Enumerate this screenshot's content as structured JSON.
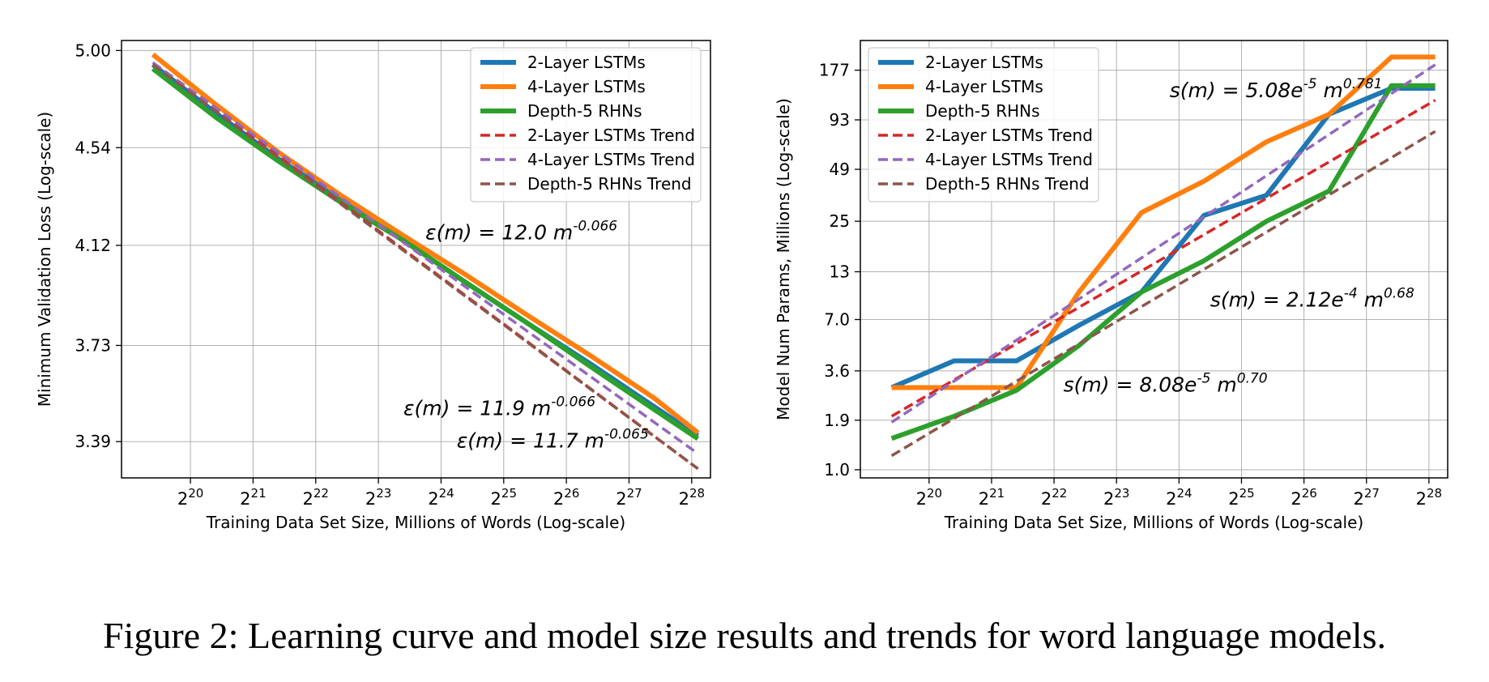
{
  "figure": {
    "caption": "Figure 2: Learning curve and model size results and trends for word language models."
  },
  "colors": {
    "2-Layer LSTMs": "#1f77b4",
    "4-Layer LSTMs": "#ff7f0e",
    "Depth-5 RHNs": "#2ca02c",
    "2-Layer LSTMs Trend": "#d62728",
    "4-Layer LSTMs Trend": "#9467bd",
    "Depth-5 RHNs Trend": "#8c564b"
  },
  "chart_data": [
    {
      "type": "line",
      "title": "",
      "xlabel": "Training Data Set Size, Millions of Words (Log-scale)",
      "ylabel": "Minimum Validation Loss (Log-scale)",
      "xscale": "log2",
      "yscale": "log",
      "grid": true,
      "legend": "top-right",
      "xlim_exp": [
        18.9,
        28.3
      ],
      "ylim": [
        3.27,
        5.05
      ],
      "xticks": [
        {
          "exp": 20,
          "base": "2",
          "sup": "20"
        },
        {
          "exp": 21,
          "base": "2",
          "sup": "21"
        },
        {
          "exp": 22,
          "base": "2",
          "sup": "22"
        },
        {
          "exp": 23,
          "base": "2",
          "sup": "23"
        },
        {
          "exp": 24,
          "base": "2",
          "sup": "24"
        },
        {
          "exp": 25,
          "base": "2",
          "sup": "25"
        },
        {
          "exp": 26,
          "base": "2",
          "sup": "26"
        },
        {
          "exp": 27,
          "base": "2",
          "sup": "27"
        },
        {
          "exp": 28,
          "base": "2",
          "sup": "28"
        }
      ],
      "yticks": [
        {
          "value": 3.39,
          "label": "3.39"
        },
        {
          "value": 3.73,
          "label": "3.73"
        },
        {
          "value": 4.12,
          "label": "4.12"
        },
        {
          "value": 4.54,
          "label": "4.54"
        },
        {
          "value": 5.0,
          "label": "5.00"
        }
      ],
      "series": [
        {
          "name": "2-Layer LSTMs",
          "style": "solid",
          "x_exp": [
            19.4,
            20.4,
            21.4,
            22.4,
            23.4,
            24.4,
            25.4,
            26.4,
            27.4,
            28.1
          ],
          "values": [
            4.93,
            4.7,
            4.49,
            4.31,
            4.14,
            3.97,
            3.81,
            3.66,
            3.51,
            3.41
          ]
        },
        {
          "name": "4-Layer LSTMs",
          "style": "solid",
          "x_exp": [
            19.4,
            20.4,
            21.4,
            22.4,
            23.4,
            24.4,
            25.4,
            26.4,
            27.4,
            28.1
          ],
          "values": [
            4.98,
            4.74,
            4.52,
            4.33,
            4.16,
            4.0,
            3.84,
            3.69,
            3.54,
            3.42
          ]
        },
        {
          "name": "Depth-5 RHNs",
          "style": "solid",
          "x_exp": [
            19.4,
            20.4,
            21.4,
            22.4,
            23.4,
            24.4,
            25.4,
            26.4,
            27.4,
            28.1
          ],
          "values": [
            4.91,
            4.68,
            4.48,
            4.3,
            4.14,
            3.97,
            3.81,
            3.65,
            3.5,
            3.4
          ]
        },
        {
          "name": "2-Layer LSTMs Trend",
          "style": "dashed",
          "x_exp": [
            19.4,
            28.1
          ],
          "values": [
            4.94,
            3.3
          ]
        },
        {
          "name": "4-Layer LSTMs Trend",
          "style": "dashed",
          "x_exp": [
            19.4,
            28.1
          ],
          "values": [
            4.94,
            3.35
          ]
        },
        {
          "name": "Depth-5 RHNs Trend",
          "style": "dashed",
          "x_exp": [
            19.4,
            28.1
          ],
          "values": [
            4.93,
            3.3
          ]
        }
      ],
      "annotations": [
        {
          "prefix": "ε(m) = 12.0 m",
          "sup": "-0.066",
          "x_exp": 23.75,
          "y": 4.145
        },
        {
          "prefix": "ε(m) = 11.9 m",
          "sup": "-0.066",
          "x_exp": 23.4,
          "y": 3.48
        },
        {
          "prefix": "ε(m) = 11.7 m",
          "sup": "-0.065",
          "x_exp": 24.25,
          "y": 3.37
        }
      ]
    },
    {
      "type": "line",
      "title": "",
      "xlabel": "Training Data Set Size, Millions of Words (Log-scale)",
      "ylabel": "Model Num Params, Millions (Log-scale)",
      "xscale": "log2",
      "yscale": "log",
      "grid": true,
      "legend": "top-left",
      "xlim_exp": [
        18.9,
        28.3
      ],
      "ylim": [
        0.9,
        260
      ],
      "xticks": [
        {
          "exp": 20,
          "base": "2",
          "sup": "20"
        },
        {
          "exp": 21,
          "base": "2",
          "sup": "21"
        },
        {
          "exp": 22,
          "base": "2",
          "sup": "22"
        },
        {
          "exp": 23,
          "base": "2",
          "sup": "23"
        },
        {
          "exp": 24,
          "base": "2",
          "sup": "24"
        },
        {
          "exp": 25,
          "base": "2",
          "sup": "25"
        },
        {
          "exp": 26,
          "base": "2",
          "sup": "26"
        },
        {
          "exp": 27,
          "base": "2",
          "sup": "27"
        },
        {
          "exp": 28,
          "base": "2",
          "sup": "28"
        }
      ],
      "yticks": [
        {
          "value": 1.0,
          "label": "1.0"
        },
        {
          "value": 1.9,
          "label": "1.9"
        },
        {
          "value": 3.6,
          "label": "3.6"
        },
        {
          "value": 7.0,
          "label": "7.0"
        },
        {
          "value": 13,
          "label": "13"
        },
        {
          "value": 25,
          "label": "25"
        },
        {
          "value": 49,
          "label": "49"
        },
        {
          "value": 93,
          "label": "93"
        },
        {
          "value": 177,
          "label": "177"
        }
      ],
      "series": [
        {
          "name": "2-Layer LSTMs",
          "style": "solid",
          "x_exp": [
            19.4,
            20.4,
            21.4,
            22.4,
            23.4,
            24.4,
            25.4,
            26.4,
            27.4,
            28.1
          ],
          "values": [
            2.9,
            4.1,
            4.1,
            6.5,
            10.0,
            27.0,
            35.0,
            100.0,
            140.0,
            140.0
          ]
        },
        {
          "name": "4-Layer LSTMs",
          "style": "solid",
          "x_exp": [
            19.4,
            20.4,
            21.4,
            22.4,
            23.4,
            24.4,
            25.4,
            26.4,
            27.4,
            28.1
          ],
          "values": [
            2.9,
            2.9,
            2.9,
            10.0,
            28.0,
            42.0,
            70.0,
            100.0,
            210.0,
            210.0
          ]
        },
        {
          "name": "Depth-5 RHNs",
          "style": "solid",
          "x_exp": [
            19.4,
            20.4,
            21.4,
            22.4,
            23.4,
            24.4,
            25.4,
            26.4,
            27.4,
            28.1
          ],
          "values": [
            1.5,
            2.0,
            2.8,
            5.0,
            10.0,
            15.0,
            25.0,
            37.0,
            145.0,
            145.0
          ]
        },
        {
          "name": "2-Layer LSTMs Trend",
          "style": "dashed",
          "x_exp": [
            19.4,
            28.1
          ],
          "values": [
            2.0,
            120.0
          ]
        },
        {
          "name": "4-Layer LSTMs Trend",
          "style": "dashed",
          "x_exp": [
            19.4,
            28.1
          ],
          "values": [
            1.85,
            190.0
          ]
        },
        {
          "name": "Depth-5 RHNs Trend",
          "style": "dashed",
          "x_exp": [
            19.4,
            28.1
          ],
          "values": [
            1.2,
            80.0
          ]
        }
      ],
      "annotations": [
        {
          "prefix": "s(m) = 5.08e",
          "sup": "-5",
          "suffix": " m",
          "sup2": "0.781",
          "x_exp": 23.85,
          "y": 125
        },
        {
          "prefix": "s(m) = 2.12e",
          "sup": "-4",
          "suffix": " m",
          "sup2": "0.68",
          "x_exp": 24.5,
          "y": 8.3
        },
        {
          "prefix": "s(m) = 8.08e",
          "sup": "-5",
          "suffix": " m",
          "sup2": "0.70",
          "x_exp": 22.15,
          "y": 2.75
        }
      ]
    }
  ]
}
